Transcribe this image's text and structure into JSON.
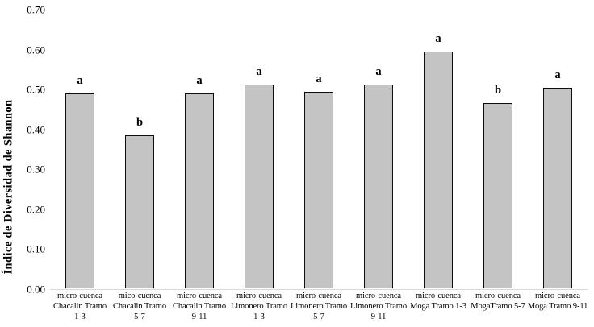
{
  "chart_data": {
    "type": "bar",
    "title": "",
    "ylabel": "Índice de Diversidad de Shannon",
    "xlabel": "",
    "ylim": [
      0,
      0.7
    ],
    "ytick_step": 0.1,
    "yticks": [
      "0.00",
      "0.10",
      "0.20",
      "0.30",
      "0.40",
      "0.50",
      "0.60",
      "0.70"
    ],
    "grid": false,
    "legend": false,
    "categories": [
      [
        "micro-cuenca",
        "Chacalin Tramo",
        "1-3"
      ],
      [
        "mico-cuenca",
        "Chacalin Tramo",
        "5-7"
      ],
      [
        "micro-cuenca",
        "Chacalin Tramo",
        "9-11"
      ],
      [
        "micro-cuenca",
        "Limonero Tramo",
        "1-3"
      ],
      [
        "micro-cuenca",
        "Limonero Tramo",
        "5-7"
      ],
      [
        "micro-cuenca",
        "Limonero Tramo",
        "9-11"
      ],
      [
        "micro-cuenca",
        "Moga Tramo 1-3"
      ],
      [
        "micro-cuenca",
        "MogaTramo 5-7"
      ],
      [
        "micro-cuenca",
        "Moga Tramo 9-11"
      ]
    ],
    "values": [
      0.49,
      0.385,
      0.49,
      0.513,
      0.494,
      0.512,
      0.594,
      0.465,
      0.505
    ],
    "significance_letters": [
      "a",
      "b",
      "a",
      "a",
      "a",
      "a",
      "a",
      "b",
      "a"
    ],
    "colors": {
      "bar_fill": "#c4c4c4",
      "bar_border": "#0d0d0d",
      "axis_line": "#d9d9d9",
      "text": "#000000",
      "background": "#ffffff"
    }
  }
}
